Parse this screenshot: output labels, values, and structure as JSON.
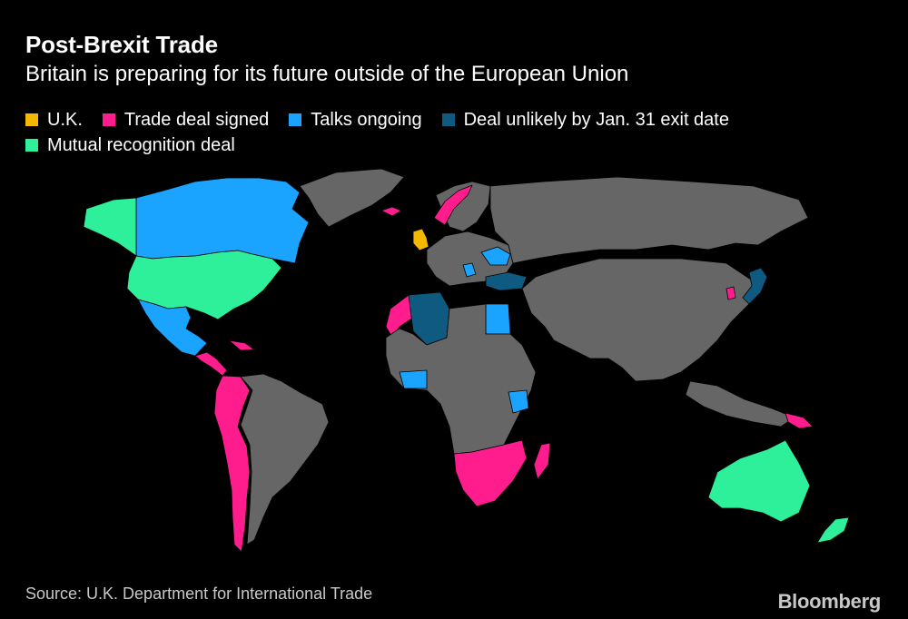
{
  "header": {
    "title": "Post-Brexit Trade",
    "subtitle": "Britain is preparing for its future outside of the European Union"
  },
  "legend": [
    {
      "label": "U.K.",
      "color": "#f5b800"
    },
    {
      "label": "Trade deal signed",
      "color": "#ff1d8e"
    },
    {
      "label": "Talks ongoing",
      "color": "#1aa3ff"
    },
    {
      "label": "Deal unlikely by Jan. 31 exit date",
      "color": "#0e5a80"
    },
    {
      "label": "Mutual recognition deal",
      "color": "#2ef09a"
    }
  ],
  "map": {
    "other_country_color": "#666666",
    "border_color": "#000000"
  },
  "footer": {
    "source": "Source: U.K. Department for International Trade",
    "brand": "Bloomberg"
  }
}
